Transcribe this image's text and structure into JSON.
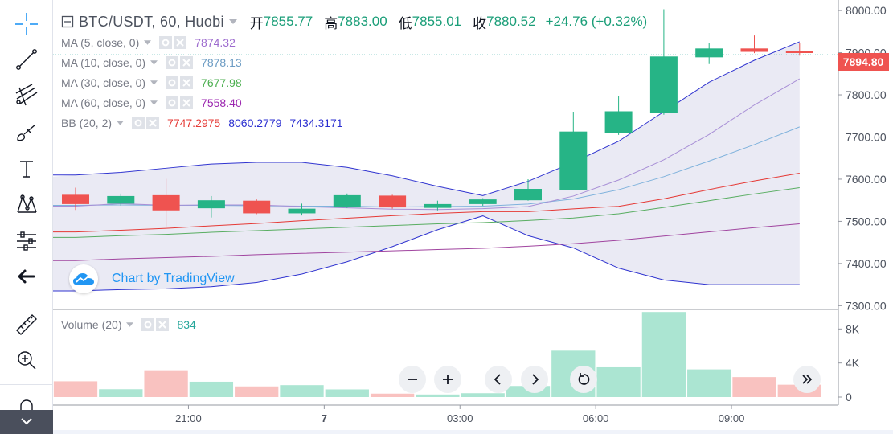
{
  "header": {
    "symbol": "BTC/USDT, 60, Huobi",
    "open_label": "开",
    "open": "7855.77",
    "high_label": "高",
    "high": "7883.00",
    "low_label": "低",
    "low": "7855.01",
    "close_label": "收",
    "close": "7880.52",
    "change": "+24.76 (+0.32%)"
  },
  "studies": [
    {
      "name": "MA (5, close, 0)",
      "values": [
        "7874.32"
      ],
      "colors": [
        "#9c6ace"
      ]
    },
    {
      "name": "MA (10, close, 0)",
      "values": [
        "7878.13"
      ],
      "colors": [
        "#6b9bc3"
      ]
    },
    {
      "name": "MA (30, close, 0)",
      "values": [
        "7677.98"
      ],
      "colors": [
        "#4caf50"
      ]
    },
    {
      "name": "MA (60, close, 0)",
      "values": [
        "7558.40"
      ],
      "colors": [
        "#9c27b0"
      ]
    },
    {
      "name": "BB (20, 2)",
      "values": [
        "7747.2975",
        "8060.2779",
        "7434.3171"
      ],
      "colors": [
        "#e53935",
        "#2a2ed0",
        "#2a2ed0"
      ]
    }
  ],
  "volume_study": {
    "name": "Volume (20)",
    "value": "834",
    "color": "#26a69a"
  },
  "watermark": "Chart by TradingView",
  "price_badge": "7894.80",
  "icons": [
    "crosshair-icon",
    "trend-line-icon",
    "pitchfork-icon",
    "brush-icon",
    "text-icon",
    "pattern-icon",
    "measure-icon",
    "back-arrow-icon",
    "ruler-icon",
    "zoom-in-icon",
    "magnet-icon",
    "collapse-icon",
    "settings-icon",
    "close-icon",
    "minus-icon",
    "plus-icon",
    "chevron-left-icon",
    "chevron-right-icon",
    "reset-icon",
    "fast-forward-icon",
    "tradingview-logo-icon"
  ],
  "colors": {
    "up": "#26b486",
    "down": "#ef5350",
    "up_vol": "#abe5d2",
    "down_vol": "#f9c2c0",
    "bb_fill": "#e6e6f2",
    "bb_line": "#3034d0",
    "last_price_line": "#26a69a"
  },
  "chart_data": {
    "type": "candlestick",
    "interval": "60",
    "x_ticks": [
      "21:00",
      "7",
      "03:00",
      "06:00",
      "09:00"
    ],
    "y_ticks": [
      "8000.00",
      "7900.00",
      "7800.00",
      "7700.00",
      "7600.00",
      "7500.00",
      "7400.00",
      "7300.00"
    ],
    "ylim": [
      7293,
      8025
    ],
    "volume_ticks": [
      "8K",
      "4K",
      "0"
    ],
    "volume_ylim": [
      0,
      10300
    ],
    "last_price": 7894.8,
    "candles": [
      {
        "o": 7563,
        "h": 7580,
        "l": 7527,
        "c": 7541
      },
      {
        "o": 7542,
        "h": 7566,
        "l": 7537,
        "c": 7560
      },
      {
        "o": 7562,
        "h": 7601,
        "l": 7488,
        "c": 7526
      },
      {
        "o": 7531,
        "h": 7560,
        "l": 7509,
        "c": 7550
      },
      {
        "o": 7549,
        "h": 7552,
        "l": 7517,
        "c": 7519
      },
      {
        "o": 7519,
        "h": 7542,
        "l": 7514,
        "c": 7530
      },
      {
        "o": 7533,
        "h": 7566,
        "l": 7532,
        "c": 7562
      },
      {
        "o": 7561,
        "h": 7563,
        "l": 7530,
        "c": 7533
      },
      {
        "o": 7532,
        "h": 7549,
        "l": 7526,
        "c": 7541
      },
      {
        "o": 7541,
        "h": 7555,
        "l": 7537,
        "c": 7552
      },
      {
        "o": 7550,
        "h": 7600,
        "l": 7549,
        "c": 7577
      },
      {
        "o": 7575,
        "h": 7760,
        "l": 7574,
        "c": 7713
      },
      {
        "o": 7710,
        "h": 7797,
        "l": 7705,
        "c": 7761
      },
      {
        "o": 7757,
        "h": 8003,
        "l": 7753,
        "c": 7891
      },
      {
        "o": 7889,
        "h": 7923,
        "l": 7873,
        "c": 7910
      },
      {
        "o": 7910,
        "h": 7941,
        "l": 7899,
        "c": 7902
      },
      {
        "o": 7903,
        "h": 7922,
        "l": 7893,
        "c": 7900
      }
    ],
    "volume": [
      1850,
      920,
      3150,
      1800,
      1250,
      1400,
      900,
      400,
      300,
      450,
      1300,
      5450,
      3500,
      10000,
      3250,
      2350,
      1450
    ],
    "ma5": [
      7536,
      7542,
      7538,
      7539,
      7539,
      7535,
      7532,
      7529,
      7528,
      7530,
      7535,
      7560,
      7598,
      7646,
      7706,
      7776,
      7838
    ],
    "ma10": [
      7538,
      7539,
      7538,
      7538,
      7537,
      7536,
      7536,
      7534,
      7535,
      7536,
      7541,
      7553,
      7575,
      7606,
      7643,
      7682,
      7724
    ],
    "ma30": [
      7462,
      7466,
      7469,
      7474,
      7478,
      7482,
      7486,
      7490,
      7494,
      7497,
      7502,
      7508,
      7518,
      7533,
      7549,
      7565,
      7580
    ],
    "ma60": [
      7407,
      7411,
      7414,
      7417,
      7421,
      7424,
      7427,
      7430,
      7433,
      7436,
      7441,
      7447,
      7455,
      7465,
      7475,
      7485,
      7494
    ],
    "bb_upper": [
      7610,
      7616,
      7626,
      7636,
      7640,
      7640,
      7628,
      7608,
      7583,
      7561,
      7595,
      7640,
      7690,
      7760,
      7830,
      7882,
      7926
    ],
    "bb_lower": [
      7335,
      7338,
      7340,
      7345,
      7355,
      7375,
      7404,
      7440,
      7480,
      7513,
      7466,
      7437,
      7389,
      7361,
      7350,
      7350,
      7350
    ]
  }
}
